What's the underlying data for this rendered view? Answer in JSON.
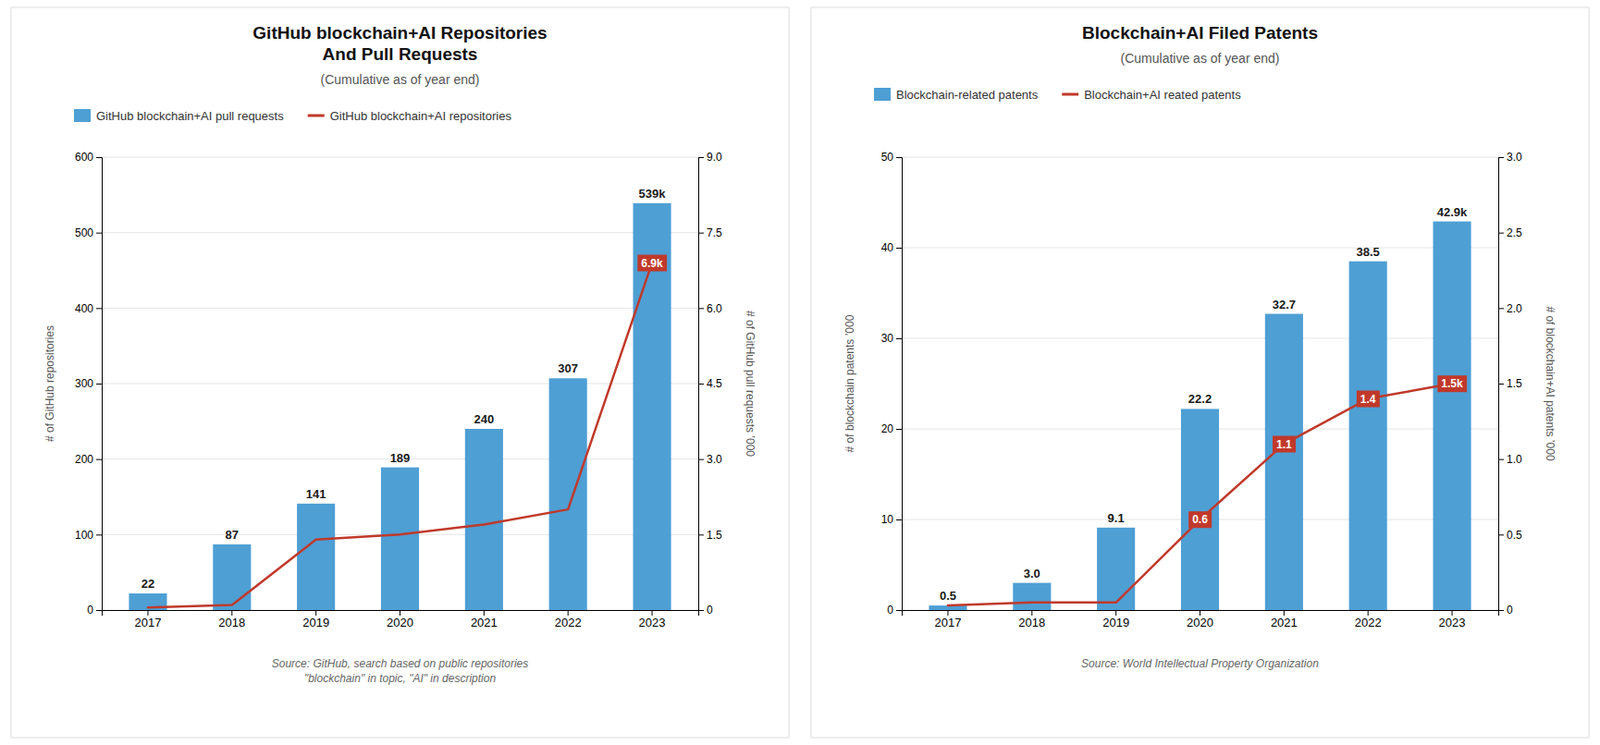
{
  "chart_data": [
    {
      "type": "bar",
      "title": "GitHub blockchain+AI Repositories\nAnd Pull Requests",
      "subtitle": "(Cumulative as of year end)",
      "categories": [
        "2017",
        "2018",
        "2019",
        "2020",
        "2021",
        "2022",
        "2023"
      ],
      "series": [
        {
          "name": "GitHub blockchain+AI pull requests",
          "type": "bar",
          "color": "#4e9fd4",
          "values": [
            22,
            87,
            141,
            189,
            240,
            307,
            539
          ],
          "value_labels": [
            "22",
            "87",
            "141",
            "189",
            "240",
            "307",
            "539k"
          ]
        },
        {
          "name": "GitHub blockchain+AI repositories",
          "type": "line",
          "color": "#c0392b",
          "axis": "y2",
          "values": [
            0.05,
            0.1,
            1.4,
            1.5,
            1.7,
            2.0,
            6.9
          ],
          "value_labels": [
            null,
            null,
            null,
            null,
            null,
            null,
            "6.9k"
          ]
        }
      ],
      "ylabel": "# of GitHub repositories",
      "y2label": "# of GitHub pull requests ’000",
      "ylim": [
        0,
        600
      ],
      "yticks": [
        0,
        100,
        200,
        300,
        400,
        500,
        600
      ],
      "y2lim": [
        0,
        9.0
      ],
      "y2ticks": [
        0,
        1.5,
        {
          "value": 3.0,
          "label": "3.0"
        },
        4.5,
        {
          "value": 6.0,
          "label": "6.0"
        },
        7.5,
        {
          "value": 9.0,
          "label": "9.0"
        }
      ],
      "grid": true,
      "legend": "upper left",
      "data_labels": true,
      "source": "Source: GitHub, search based on public repositories\n\"blockchain\" in topic, \"AI\" in description"
    },
    {
      "type": "bar",
      "title": "Blockchain+AI Filed Patents",
      "subtitle": "(Cumulative as of year end)",
      "categories": [
        "2017",
        "2018",
        "2019",
        "2020",
        "2021",
        "2022",
        "2023"
      ],
      "series": [
        {
          "name": "Blockchain-related patents",
          "type": "bar",
          "color": "#4e9fd4",
          "values": [
            0.5,
            3.0,
            9.1,
            22.2,
            32.7,
            38.5,
            42.9
          ],
          "value_labels": [
            "0.5",
            "3.0",
            "9.1",
            "22.2",
            "32.7",
            "38.5",
            "42.9k"
          ]
        },
        {
          "name": "Blockchain+AI reated patents",
          "type": "line",
          "color": "#c0392b",
          "axis": "y2",
          "values": [
            0.03,
            0.05,
            0.05,
            0.6,
            1.1,
            1.4,
            1.5
          ],
          "value_labels": [
            null,
            null,
            null,
            "0.6",
            "1.1",
            "1.4",
            "1.5k"
          ]
        }
      ],
      "ylabel": "# of blockchain patents ’000",
      "y2label": "# of blockchain+AI patents ’000",
      "ylim": [
        0,
        50
      ],
      "yticks": [
        0,
        10,
        20,
        30,
        40,
        50
      ],
      "y2lim": [
        0,
        3.0
      ],
      "y2ticks": [
        0,
        0.5,
        {
          "value": 1.0,
          "label": "1.0"
        },
        1.5,
        {
          "value": 2.0,
          "label": "2.0"
        },
        2.5,
        {
          "value": 3.0,
          "label": "3.0"
        }
      ],
      "grid": true,
      "legend": "upper left",
      "data_labels": true,
      "source": "Source: World Intellectual Property Organization"
    }
  ]
}
